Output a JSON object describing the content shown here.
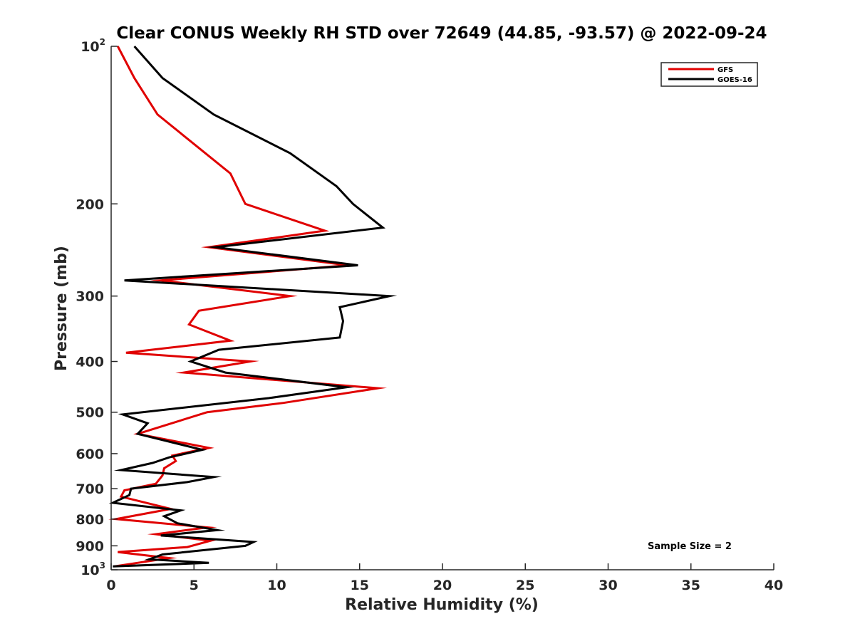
{
  "chart_data": {
    "type": "line",
    "title": "Clear CONUS Weekly RH STD over 72649 (44.85, -93.57) @ 2022-09-24",
    "xlabel": "Relative Humidity (%)",
    "ylabel": "Pressure (mb)",
    "xlim": [
      0,
      40
    ],
    "ylim": [
      100,
      1000
    ],
    "y_scale": "log",
    "y_reversed": true,
    "x_ticks": [
      0,
      5,
      10,
      15,
      20,
      25,
      30,
      35,
      40
    ],
    "x_tick_labels": [
      "0",
      "5",
      "10",
      "15",
      "20",
      "25",
      "30",
      "35",
      "40"
    ],
    "y_ticks": [
      {
        "value": 100,
        "base": "10",
        "exp": "2"
      },
      {
        "value": 200,
        "label": "200"
      },
      {
        "value": 300,
        "label": "300"
      },
      {
        "value": 400,
        "label": "400"
      },
      {
        "value": 500,
        "label": "500"
      },
      {
        "value": 600,
        "label": "600"
      },
      {
        "value": 700,
        "label": "700"
      },
      {
        "value": 800,
        "label": "800"
      },
      {
        "value": 900,
        "label": "900"
      },
      {
        "value": 1000,
        "base": "10",
        "exp": "3"
      }
    ],
    "grid": false,
    "legend_position": "top-right",
    "annotation": "Sample Size = 2",
    "series": [
      {
        "name": "GFS",
        "color": "#e00000",
        "points": [
          [
            0.4,
            100
          ],
          [
            1.4,
            115
          ],
          [
            2.8,
            135
          ],
          [
            7.2,
            175
          ],
          [
            8.1,
            200
          ],
          [
            12.9,
            225
          ],
          [
            5.9,
            242
          ],
          [
            14.3,
            262
          ],
          [
            3.0,
            280
          ],
          [
            10.8,
            300
          ],
          [
            5.3,
            320
          ],
          [
            4.7,
            340
          ],
          [
            7.2,
            365
          ],
          [
            0.9,
            385
          ],
          [
            8.4,
            400
          ],
          [
            4.4,
            420
          ],
          [
            16.1,
            450
          ],
          [
            10.4,
            480
          ],
          [
            5.8,
            500
          ],
          [
            1.6,
            550
          ],
          [
            5.9,
            585
          ],
          [
            3.7,
            605
          ],
          [
            3.9,
            620
          ],
          [
            3.2,
            640
          ],
          [
            3.1,
            660
          ],
          [
            2.7,
            685
          ],
          [
            0.8,
            705
          ],
          [
            0.6,
            725
          ],
          [
            3.6,
            765
          ],
          [
            0.3,
            800
          ],
          [
            5.8,
            830
          ],
          [
            2.7,
            855
          ],
          [
            6.0,
            880
          ],
          [
            4.6,
            905
          ],
          [
            0.4,
            925
          ],
          [
            3.5,
            950
          ],
          [
            0.2,
            985
          ]
        ]
      },
      {
        "name": "GOES-16",
        "color": "#000000",
        "points": [
          [
            1.4,
            100
          ],
          [
            3.1,
            115
          ],
          [
            6.2,
            135
          ],
          [
            10.8,
            160
          ],
          [
            13.6,
            185
          ],
          [
            14.6,
            200
          ],
          [
            16.4,
            222
          ],
          [
            6.3,
            242
          ],
          [
            14.9,
            262
          ],
          [
            0.8,
            280
          ],
          [
            16.8,
            300
          ],
          [
            13.8,
            315
          ],
          [
            14.0,
            335
          ],
          [
            13.8,
            360
          ],
          [
            6.5,
            380
          ],
          [
            4.8,
            400
          ],
          [
            6.9,
            420
          ],
          [
            14.2,
            448
          ],
          [
            9.5,
            470
          ],
          [
            0.7,
            505
          ],
          [
            2.2,
            525
          ],
          [
            1.6,
            550
          ],
          [
            5.5,
            590
          ],
          [
            3.5,
            610
          ],
          [
            2.5,
            625
          ],
          [
            0.6,
            645
          ],
          [
            6.2,
            665
          ],
          [
            4.6,
            680
          ],
          [
            1.2,
            700
          ],
          [
            1.1,
            720
          ],
          [
            0.1,
            745
          ],
          [
            4.2,
            770
          ],
          [
            3.2,
            790
          ],
          [
            4.0,
            815
          ],
          [
            6.4,
            840
          ],
          [
            3.0,
            860
          ],
          [
            8.6,
            885
          ],
          [
            8.1,
            900
          ],
          [
            3.1,
            935
          ],
          [
            2.3,
            955
          ],
          [
            5.9,
            970
          ],
          [
            0.1,
            985
          ]
        ]
      }
    ]
  }
}
